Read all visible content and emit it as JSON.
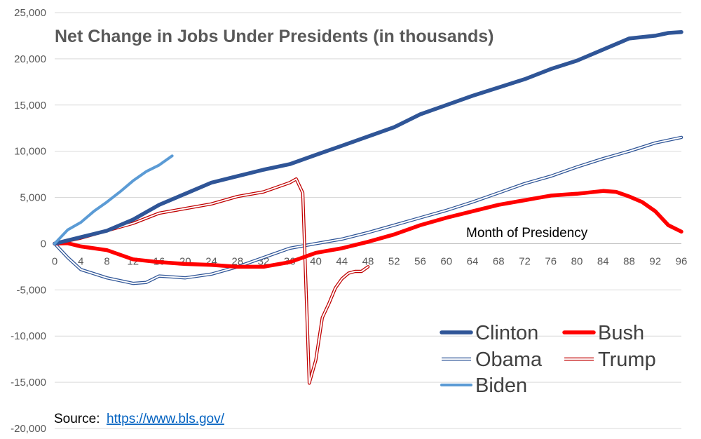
{
  "chart_data": {
    "type": "line",
    "title": "Net Change in Jobs Under Presidents (in thousands)",
    "xlabel": "",
    "ylabel": "",
    "annotation": "Month of Presidency",
    "xlim": [
      0,
      96
    ],
    "ylim": [
      -20000,
      25000
    ],
    "x_ticks": [
      "0",
      "4",
      "8",
      "12",
      "16",
      "20",
      "24",
      "28",
      "32",
      "36",
      "40",
      "44",
      "48",
      "52",
      "56",
      "60",
      "64",
      "68",
      "72",
      "76",
      "80",
      "84",
      "88",
      "92",
      "96"
    ],
    "y_ticks": [
      "25,000",
      "20,000",
      "15,000",
      "10,000",
      "5,000",
      "0",
      "-5,000",
      "-10,000",
      "-15,000",
      "-20,000"
    ],
    "grid": true,
    "legend_position": "bottom-right",
    "source_label": "Source:",
    "source_url": "https://www.bls.gov/",
    "series": [
      {
        "name": "Clinton",
        "color": "#2f5597",
        "style": "solid-thick",
        "points": [
          [
            0,
            0
          ],
          [
            4,
            700
          ],
          [
            8,
            1400
          ],
          [
            12,
            2600
          ],
          [
            16,
            4200
          ],
          [
            20,
            5400
          ],
          [
            24,
            6600
          ],
          [
            28,
            7300
          ],
          [
            32,
            8000
          ],
          [
            36,
            8600
          ],
          [
            40,
            9600
          ],
          [
            44,
            10600
          ],
          [
            48,
            11600
          ],
          [
            52,
            12600
          ],
          [
            54,
            13300
          ],
          [
            56,
            14000
          ],
          [
            60,
            15000
          ],
          [
            64,
            16000
          ],
          [
            68,
            16900
          ],
          [
            72,
            17800
          ],
          [
            76,
            18900
          ],
          [
            80,
            19800
          ],
          [
            84,
            21000
          ],
          [
            86,
            21600
          ],
          [
            88,
            22200
          ],
          [
            92,
            22500
          ],
          [
            94,
            22800
          ],
          [
            96,
            22900
          ]
        ]
      },
      {
        "name": "Bush",
        "color": "#ff0000",
        "style": "solid-thick",
        "points": [
          [
            0,
            0
          ],
          [
            2,
            50
          ],
          [
            4,
            -300
          ],
          [
            8,
            -700
          ],
          [
            12,
            -1700
          ],
          [
            16,
            -2000
          ],
          [
            20,
            -2200
          ],
          [
            24,
            -2300
          ],
          [
            28,
            -2500
          ],
          [
            32,
            -2500
          ],
          [
            36,
            -2000
          ],
          [
            40,
            -1000
          ],
          [
            44,
            -500
          ],
          [
            48,
            200
          ],
          [
            52,
            1000
          ],
          [
            56,
            2000
          ],
          [
            60,
            2800
          ],
          [
            64,
            3500
          ],
          [
            68,
            4200
          ],
          [
            72,
            4700
          ],
          [
            76,
            5200
          ],
          [
            80,
            5400
          ],
          [
            84,
            5700
          ],
          [
            86,
            5600
          ],
          [
            88,
            5100
          ],
          [
            90,
            4500
          ],
          [
            92,
            3500
          ],
          [
            94,
            2000
          ],
          [
            96,
            1300
          ]
        ]
      },
      {
        "name": "Obama",
        "color": "#2f5597",
        "style": "double",
        "points": [
          [
            0,
            0
          ],
          [
            2,
            -1500
          ],
          [
            4,
            -2800
          ],
          [
            8,
            -3700
          ],
          [
            12,
            -4300
          ],
          [
            14,
            -4200
          ],
          [
            16,
            -3500
          ],
          [
            20,
            -3700
          ],
          [
            24,
            -3300
          ],
          [
            28,
            -2500
          ],
          [
            32,
            -1500
          ],
          [
            36,
            -500
          ],
          [
            40,
            0
          ],
          [
            44,
            500
          ],
          [
            48,
            1200
          ],
          [
            52,
            2000
          ],
          [
            56,
            2800
          ],
          [
            60,
            3600
          ],
          [
            64,
            4500
          ],
          [
            68,
            5500
          ],
          [
            72,
            6500
          ],
          [
            76,
            7300
          ],
          [
            80,
            8300
          ],
          [
            84,
            9200
          ],
          [
            88,
            10000
          ],
          [
            92,
            10900
          ],
          [
            96,
            11500
          ]
        ]
      },
      {
        "name": "Trump",
        "color": "#c00000",
        "style": "double",
        "points": [
          [
            0,
            0
          ],
          [
            4,
            600
          ],
          [
            8,
            1400
          ],
          [
            12,
            2200
          ],
          [
            16,
            3300
          ],
          [
            20,
            3800
          ],
          [
            24,
            4300
          ],
          [
            28,
            5100
          ],
          [
            32,
            5600
          ],
          [
            36,
            6600
          ],
          [
            37,
            7000
          ],
          [
            38,
            5500
          ],
          [
            39,
            -15100
          ],
          [
            40,
            -12600
          ],
          [
            41,
            -8000
          ],
          [
            42,
            -6500
          ],
          [
            43,
            -4800
          ],
          [
            44,
            -3800
          ],
          [
            45,
            -3200
          ],
          [
            46,
            -3000
          ],
          [
            47,
            -3000
          ],
          [
            48,
            -2500
          ]
        ]
      },
      {
        "name": "Biden",
        "color": "#5b9bd5",
        "style": "solid-medium",
        "points": [
          [
            0,
            0
          ],
          [
            2,
            1500
          ],
          [
            4,
            2300
          ],
          [
            6,
            3500
          ],
          [
            8,
            4500
          ],
          [
            10,
            5600
          ],
          [
            12,
            6800
          ],
          [
            14,
            7800
          ],
          [
            16,
            8500
          ],
          [
            18,
            9500
          ]
        ]
      }
    ]
  }
}
